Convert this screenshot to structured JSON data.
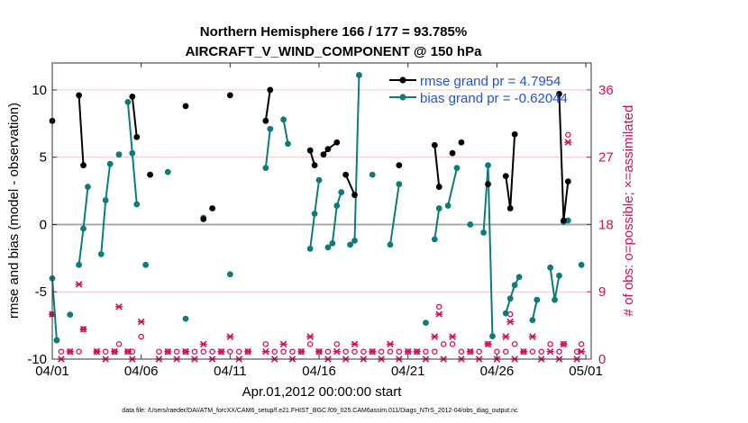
{
  "chart_data": {
    "type": "line",
    "title": "Northern Hemisphere 166 / 177 = 93.785%",
    "subtitle": "AIRCRAFT_V_WIND_COMPONENT @ 150 hPa",
    "xlabel": "Apr.01,2012 00:00:00 start",
    "ylabel": "rmse and bias (model - observation)",
    "ylabel_right": "# of obs: o=possible; ×=assimilated",
    "footnote": "data file: /Users/raeder/DAI/ATM_forcXX/CAM6_setup/f.e21.FHIST_BGC.f09_025.CAM6assim.011/Diags_NTrS_2012-04/obs_diag_output.nc",
    "xlim": [
      0,
      30.3
    ],
    "ylim": [
      -10,
      12
    ],
    "ylim_right": [
      0,
      39.6
    ],
    "x_tick_labels": [
      "04/01",
      "04/06",
      "04/11",
      "04/16",
      "04/21",
      "04/26",
      "05/01"
    ],
    "x_tick_values": [
      0,
      5,
      10,
      15,
      20,
      25,
      30
    ],
    "y_ticks": [
      -10,
      -5,
      0,
      5,
      10
    ],
    "y_ticks_right": [
      0,
      9,
      18,
      27,
      36
    ],
    "legend": [
      "rmse grand pr = 4.7954",
      "bias grand pr = -0.62044"
    ],
    "legend_position": "top-right",
    "colors": {
      "rmse": "#000000",
      "bias": "#0e7b7b",
      "obs": "#d10f5a",
      "zero_line": "#a8a8a8",
      "grid": "#f1b8c8"
    },
    "series": [
      {
        "name": "rmse",
        "segments": [
          [
            [
              0.0,
              7.7
            ]
          ],
          [
            [
              1.5,
              9.6
            ],
            [
              1.75,
              4.4
            ]
          ],
          [
            [
              4.5,
              9.5
            ],
            [
              4.75,
              6.5
            ]
          ],
          [
            [
              5.5,
              3.7
            ]
          ],
          [
            [
              7.5,
              8.8
            ]
          ],
          [
            [
              8.5,
              0.4
            ]
          ],
          [
            [
              9.0,
              1.2
            ]
          ],
          [
            [
              10.0,
              9.6
            ]
          ],
          [
            [
              12.0,
              7.7
            ],
            [
              12.25,
              10.0
            ]
          ],
          [
            [
              14.5,
              5.5
            ],
            [
              14.75,
              4.4
            ]
          ],
          [
            [
              15.25,
              5.2
            ],
            [
              15.5,
              5.6
            ],
            [
              16.0,
              6.1
            ]
          ],
          [
            [
              16.5,
              3.7
            ],
            [
              17.0,
              2.2
            ]
          ],
          [
            [
              19.5,
              4.4
            ]
          ],
          [
            [
              21.5,
              5.9
            ],
            [
              21.75,
              2.8
            ]
          ],
          [
            [
              22.5,
              5.3
            ]
          ],
          [
            [
              23.0,
              6.1
            ]
          ],
          [
            [
              24.5,
              3.0
            ]
          ],
          [
            [
              25.5,
              3.6
            ],
            [
              25.75,
              1.2
            ],
            [
              26.0,
              6.7
            ]
          ],
          [
            [
              28.5,
              9.7
            ],
            [
              28.75,
              0.3
            ],
            [
              29.0,
              3.2
            ]
          ]
        ]
      },
      {
        "name": "bias",
        "segments": [
          [
            [
              0.0,
              -4.0
            ],
            [
              0.25,
              -8.6
            ]
          ],
          [
            [
              1.0,
              -6.7
            ]
          ],
          [
            [
              1.5,
              -3.0
            ],
            [
              1.75,
              -0.3
            ],
            [
              2.0,
              2.8
            ]
          ],
          [
            [
              2.75,
              -2.2
            ],
            [
              3.0,
              1.8
            ],
            [
              3.25,
              4.5
            ]
          ],
          [
            [
              3.75,
              5.2
            ]
          ],
          [
            [
              4.25,
              9.1
            ],
            [
              4.5,
              5.3
            ],
            [
              4.75,
              1.5
            ]
          ],
          [
            [
              5.25,
              -3.0
            ]
          ],
          [
            [
              6.5,
              3.9
            ]
          ],
          [
            [
              7.5,
              -7.0
            ]
          ],
          [
            [
              8.5,
              0.5
            ]
          ],
          [
            [
              10.0,
              -3.7
            ]
          ],
          [
            [
              12.0,
              4.2
            ],
            [
              12.25,
              7.1
            ]
          ],
          [
            [
              13.0,
              7.8
            ],
            [
              13.25,
              6.0
            ]
          ],
          [
            [
              14.5,
              -1.8
            ],
            [
              14.75,
              0.8
            ],
            [
              15.0,
              3.3
            ]
          ],
          [
            [
              15.5,
              -1.7
            ],
            [
              15.75,
              -1.4
            ],
            [
              16.0,
              1.4
            ],
            [
              16.25,
              2.4
            ]
          ],
          [
            [
              16.75,
              -1.5
            ],
            [
              17.0,
              -1.2
            ],
            [
              17.25,
              11.1
            ]
          ],
          [
            [
              18.0,
              3.7
            ]
          ],
          [
            [
              19.0,
              -1.5
            ],
            [
              19.5,
              3.0
            ]
          ],
          [
            [
              21.0,
              -7.3
            ]
          ],
          [
            [
              21.5,
              -1.1
            ],
            [
              21.75,
              1.2
            ]
          ],
          [
            [
              22.25,
              1.4
            ],
            [
              22.75,
              4.2
            ]
          ],
          [
            [
              23.5,
              0.0
            ]
          ],
          [
            [
              24.25,
              -0.6
            ],
            [
              24.5,
              4.4
            ],
            [
              24.75,
              -8.3
            ]
          ],
          [
            [
              25.5,
              -6.6
            ],
            [
              25.75,
              -5.5
            ],
            [
              26.0,
              -4.5
            ],
            [
              26.25,
              -3.9
            ]
          ],
          [
            [
              27.0,
              -7.1
            ],
            [
              27.25,
              -5.6
            ]
          ],
          [
            [
              28.0,
              -3.2
            ],
            [
              28.25,
              -5.6
            ],
            [
              28.5,
              -3.8
            ]
          ],
          [
            [
              28.75,
              0.2
            ],
            [
              29.0,
              0.3
            ]
          ],
          [
            [
              29.75,
              -3.0
            ]
          ]
        ]
      },
      {
        "name": "obs possible",
        "marker": "o",
        "x": [
          0.0,
          0.5,
          1.0,
          1.5,
          1.75,
          2.5,
          3.0,
          3.5,
          3.75,
          4.25,
          4.5,
          5.0,
          6.0,
          6.5,
          7.0,
          7.5,
          8.0,
          8.5,
          9.0,
          9.5,
          10.0,
          10.5,
          11.0,
          12.0,
          12.5,
          13.0,
          13.5,
          14.0,
          14.5,
          15.0,
          15.5,
          16.0,
          16.5,
          17.0,
          17.5,
          18.0,
          18.5,
          19.0,
          19.5,
          20.0,
          20.5,
          21.0,
          21.5,
          21.75,
          22.0,
          22.5,
          23.0,
          23.5,
          24.0,
          24.5,
          25.0,
          25.5,
          25.75,
          26.0,
          26.5,
          27.0,
          27.5,
          28.0,
          28.5,
          28.75,
          29.0,
          29.5,
          29.75
        ],
        "y": [
          6,
          1,
          1,
          1,
          4,
          1,
          1,
          1,
          2,
          1,
          1,
          3,
          1,
          1,
          1,
          1,
          1,
          1,
          1,
          1,
          1,
          1,
          1,
          2,
          1,
          1,
          1,
          1,
          2,
          1,
          1,
          2,
          1,
          1,
          1,
          1,
          1,
          1,
          1,
          1,
          1,
          1,
          1,
          7,
          2,
          2,
          1,
          1,
          1,
          2,
          1,
          1,
          6,
          2,
          1,
          1,
          1,
          2,
          1,
          2,
          30,
          1,
          2
        ]
      },
      {
        "name": "obs assimilated",
        "marker": "x",
        "x": [
          0.0,
          0.5,
          1.0,
          1.5,
          1.75,
          2.5,
          3.0,
          3.5,
          3.75,
          4.25,
          4.5,
          5.0,
          6.0,
          6.5,
          7.0,
          7.5,
          8.0,
          8.5,
          9.0,
          9.5,
          10.0,
          10.5,
          11.0,
          12.0,
          12.5,
          13.0,
          13.5,
          14.0,
          14.5,
          15.0,
          15.5,
          16.0,
          16.5,
          17.0,
          17.5,
          18.0,
          18.5,
          19.0,
          19.5,
          20.0,
          20.5,
          21.0,
          21.5,
          21.75,
          22.0,
          22.5,
          23.0,
          23.5,
          24.0,
          24.5,
          25.0,
          25.5,
          25.75,
          26.0,
          26.5,
          27.0,
          27.5,
          28.0,
          28.5,
          28.75,
          29.0,
          29.5,
          29.75
        ],
        "y": [
          6,
          0,
          1,
          10,
          4,
          1,
          0,
          1,
          7,
          1,
          0,
          5,
          0,
          1,
          0,
          1,
          0,
          2,
          0,
          1,
          3,
          0,
          1,
          1,
          0,
          2,
          0,
          1,
          3,
          1,
          0,
          1,
          0,
          2,
          0,
          1,
          0,
          2,
          0,
          1,
          1,
          0,
          3,
          6,
          0,
          3,
          0,
          1,
          0,
          2,
          0,
          3,
          5,
          0,
          1,
          3,
          0,
          1,
          0,
          2,
          29,
          0,
          1
        ]
      }
    ]
  }
}
